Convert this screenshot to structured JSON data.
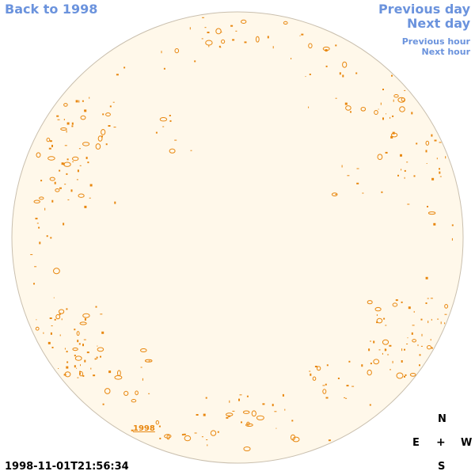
{
  "nav": {
    "back": "Back to 1998",
    "prev_day": "Previous day",
    "next_day": "Next day",
    "prev_hour": "Previous hour",
    "next_hour": "Next hour"
  },
  "disk": {
    "fill": "#fff8ea",
    "stroke": "#c9bfae",
    "contour_color": "#e8870f",
    "year_label": "1998"
  },
  "compass": {
    "north": "N",
    "east": "E",
    "center": "+",
    "west": "W",
    "south": "S"
  },
  "timestamp": "1998-11-01T21:56:34"
}
